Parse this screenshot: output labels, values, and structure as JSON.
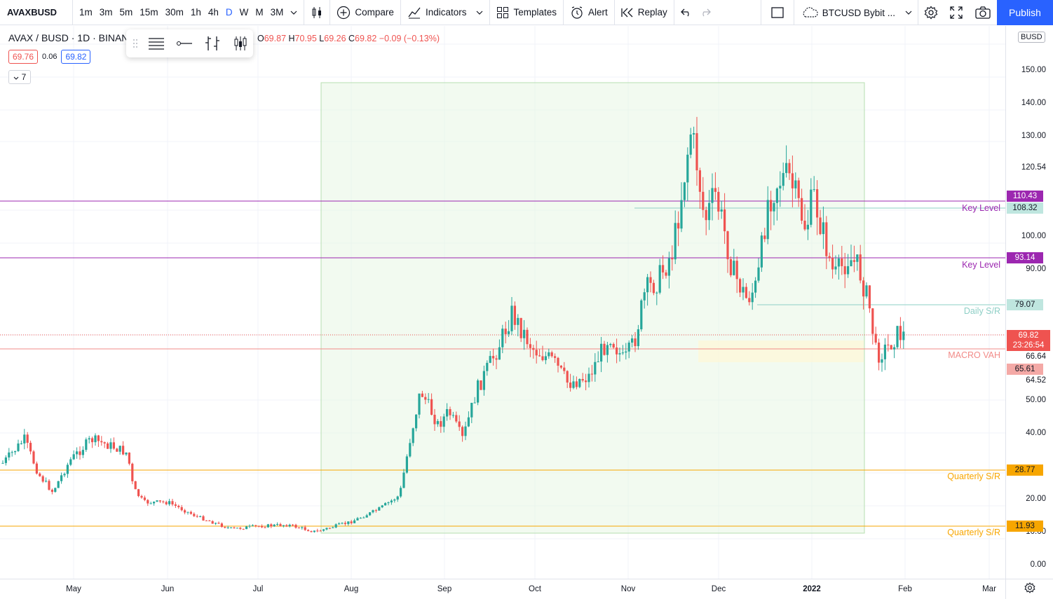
{
  "toolbar": {
    "symbol": "AVAXBUSD",
    "intervals": [
      "1m",
      "3m",
      "5m",
      "15m",
      "30m",
      "1h",
      "4h",
      "D",
      "W",
      "M",
      "3M"
    ],
    "active_interval": "D",
    "compare_label": "Compare",
    "indicators_label": "Indicators",
    "templates_label": "Templates",
    "alert_label": "Alert",
    "replay_label": "Replay",
    "compare_symbol": "BTCUSD Bybit ...",
    "publish_label": "Publish"
  },
  "legend": {
    "title": "AVAX / BUSD · 1D · BINAN",
    "ohlc": {
      "o_key": "O",
      "o": "69.87",
      "h_key": "H",
      "h": "70.95",
      "l_key": "L",
      "l": "69.26",
      "c_key": "C",
      "c": "69.82",
      "change": "−0.09 (−0.13%)"
    },
    "sell_price": "69.76",
    "spread": "0.06",
    "buy_price": "69.82",
    "indicator_count": "7"
  },
  "price_scale": {
    "currency": "BUSD",
    "ticks": [
      "150.00",
      "140.00",
      "130.00",
      "120.54",
      "100.00",
      "90.00",
      "64.52",
      "50.00",
      "40.00",
      "20.00",
      "10.00",
      "0.00",
      "66.64"
    ],
    "labels": {
      "l110": "110.43",
      "l108": "108.32",
      "l93": "93.14",
      "l79": "79.07",
      "cur": "69.82",
      "countdown": "23:26:54",
      "l65": "65.61",
      "l28": "28.77",
      "l11": "11.93"
    }
  },
  "lines": {
    "key_level_1": "Key Level",
    "key_level_2": "Key Level",
    "daily_sr": "Daily S/R",
    "macro_vah": "MACRO VAH",
    "quarterly_1": "Quarterly S/R",
    "quarterly_2": "Quarterly S/R"
  },
  "time_scale": [
    "May",
    "Jun",
    "Jul",
    "Aug",
    "Sep",
    "Oct",
    "Nov",
    "Dec",
    "2022",
    "Feb",
    "Mar"
  ],
  "colors": {
    "up": "#26a69a",
    "down": "#ef5350",
    "purple": "#9c27b0",
    "orange": "#f7a600",
    "daily_sr": "#8ecfc6",
    "macro_vah": "#f28b88",
    "accent": "#2962ff"
  },
  "icons": [
    "search-icon",
    "bar-style-icon",
    "plus-circle-icon",
    "indicators-icon",
    "templates-icon",
    "alert-icon",
    "replay-icon",
    "undo-icon",
    "redo-icon",
    "layout-icon",
    "cloud-icon",
    "settings-icon",
    "fullscreen-icon",
    "camera-icon"
  ]
}
